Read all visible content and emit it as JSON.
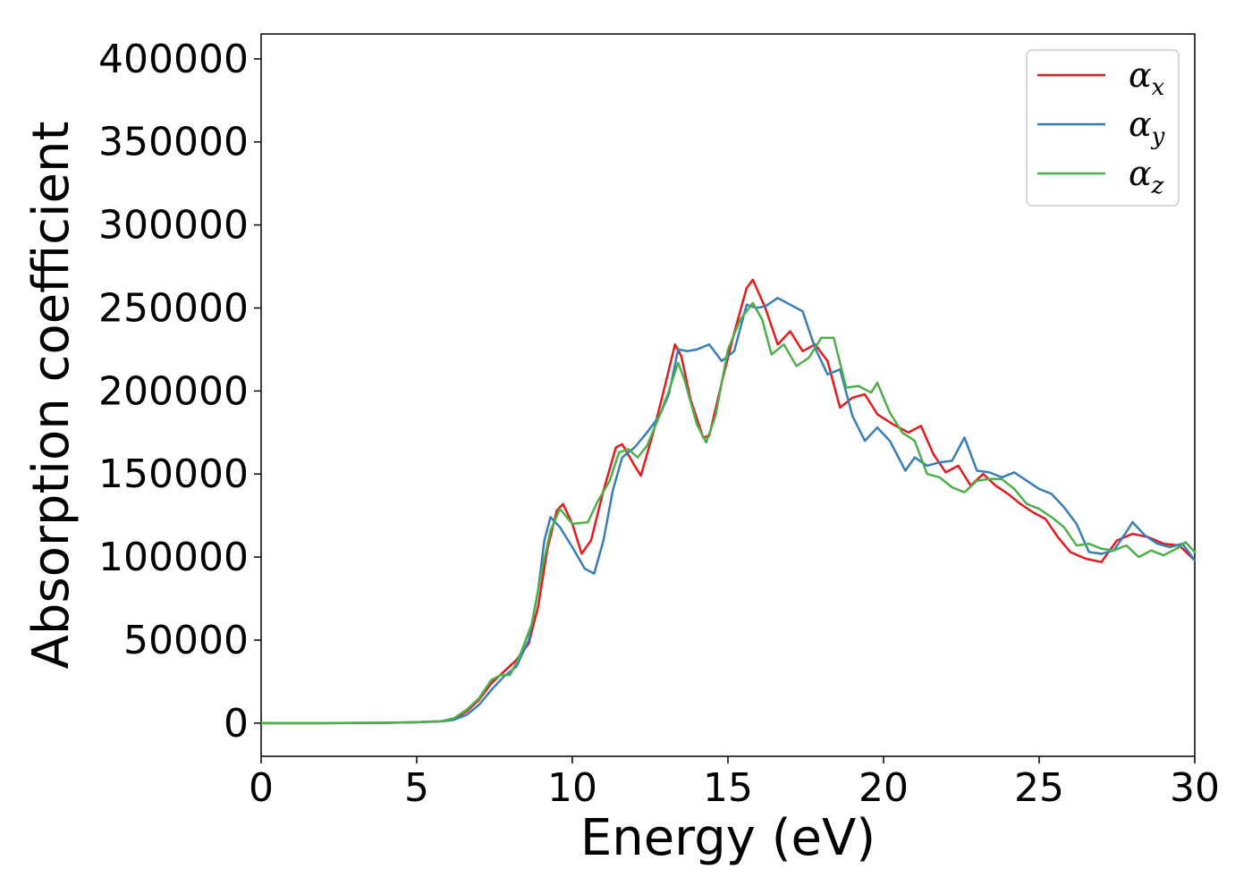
{
  "chart_data": {
    "type": "line",
    "title": "",
    "xlabel": "Energy (eV)",
    "ylabel": "Absorption coefficient",
    "xlim": [
      0,
      30
    ],
    "ylim": [
      -20000,
      415000
    ],
    "xticks": [
      0,
      5,
      10,
      15,
      20,
      25,
      30
    ],
    "xtick_labels": [
      "0",
      "5",
      "10",
      "15",
      "20",
      "25",
      "30"
    ],
    "yticks": [
      0,
      50000,
      100000,
      150000,
      200000,
      250000,
      300000,
      350000,
      400000
    ],
    "ytick_labels": [
      "0",
      "50000",
      "100000",
      "150000",
      "200000",
      "250000",
      "300000",
      "350000",
      "400000"
    ],
    "grid": false,
    "legend_position": "top-right",
    "series": [
      {
        "name": "α",
        "subscript": "x",
        "color": "#e41a1c",
        "points": [
          [
            0,
            0
          ],
          [
            2,
            0
          ],
          [
            4,
            200
          ],
          [
            5,
            500
          ],
          [
            5.8,
            1200
          ],
          [
            6.2,
            2500
          ],
          [
            6.6,
            7000
          ],
          [
            7,
            14000
          ],
          [
            7.4,
            24000
          ],
          [
            7.8,
            31000
          ],
          [
            8.2,
            38000
          ],
          [
            8.6,
            48000
          ],
          [
            8.9,
            70000
          ],
          [
            9.2,
            105000
          ],
          [
            9.5,
            128000
          ],
          [
            9.7,
            132000
          ],
          [
            10,
            120000
          ],
          [
            10.3,
            102000
          ],
          [
            10.6,
            110000
          ],
          [
            11,
            140000
          ],
          [
            11.4,
            166000
          ],
          [
            11.6,
            168000
          ],
          [
            12,
            155000
          ],
          [
            12.2,
            149000
          ],
          [
            12.6,
            175000
          ],
          [
            13,
            205000
          ],
          [
            13.3,
            228000
          ],
          [
            13.5,
            221000
          ],
          [
            13.8,
            195000
          ],
          [
            14.2,
            172000
          ],
          [
            14.4,
            173000
          ],
          [
            14.8,
            205000
          ],
          [
            15.2,
            235000
          ],
          [
            15.6,
            262000
          ],
          [
            15.8,
            267000
          ],
          [
            16.2,
            250000
          ],
          [
            16.6,
            228000
          ],
          [
            17,
            236000
          ],
          [
            17.4,
            224000
          ],
          [
            17.8,
            228000
          ],
          [
            18.2,
            218000
          ],
          [
            18.6,
            190000
          ],
          [
            19,
            196000
          ],
          [
            19.4,
            198000
          ],
          [
            19.8,
            186000
          ],
          [
            20.3,
            180000
          ],
          [
            20.8,
            175000
          ],
          [
            21.2,
            179000
          ],
          [
            21.6,
            162000
          ],
          [
            22,
            151000
          ],
          [
            22.4,
            155000
          ],
          [
            22.8,
            143000
          ],
          [
            23.2,
            150000
          ],
          [
            23.6,
            143000
          ],
          [
            24,
            138000
          ],
          [
            24.4,
            132000
          ],
          [
            24.8,
            127000
          ],
          [
            25.2,
            123000
          ],
          [
            25.6,
            112000
          ],
          [
            26,
            103000
          ],
          [
            26.5,
            99000
          ],
          [
            27,
            97000
          ],
          [
            27.5,
            110000
          ],
          [
            28,
            114000
          ],
          [
            28.5,
            112000
          ],
          [
            29,
            108000
          ],
          [
            29.5,
            107000
          ],
          [
            30,
            98000
          ]
        ]
      },
      {
        "name": "α",
        "subscript": "y",
        "color": "#377eb8",
        "points": [
          [
            0,
            0
          ],
          [
            2,
            0
          ],
          [
            4,
            200
          ],
          [
            5,
            500
          ],
          [
            5.8,
            1000
          ],
          [
            6.2,
            2000
          ],
          [
            6.6,
            5000
          ],
          [
            7,
            11000
          ],
          [
            7.4,
            20000
          ],
          [
            7.8,
            28000
          ],
          [
            8.2,
            34000
          ],
          [
            8.6,
            50000
          ],
          [
            8.9,
            80000
          ],
          [
            9.1,
            110000
          ],
          [
            9.3,
            124000
          ],
          [
            9.6,
            118000
          ],
          [
            10,
            106000
          ],
          [
            10.4,
            93000
          ],
          [
            10.7,
            90000
          ],
          [
            11,
            110000
          ],
          [
            11.3,
            140000
          ],
          [
            11.6,
            160000
          ],
          [
            12,
            166000
          ],
          [
            12.4,
            175000
          ],
          [
            12.8,
            185000
          ],
          [
            13.1,
            198000
          ],
          [
            13.4,
            225000
          ],
          [
            13.7,
            224000
          ],
          [
            14,
            225000
          ],
          [
            14.4,
            228000
          ],
          [
            14.8,
            218000
          ],
          [
            15.2,
            224000
          ],
          [
            15.6,
            252000
          ],
          [
            15.9,
            250000
          ],
          [
            16.2,
            251000
          ],
          [
            16.6,
            256000
          ],
          [
            17,
            252000
          ],
          [
            17.4,
            248000
          ],
          [
            17.8,
            226000
          ],
          [
            18.2,
            210000
          ],
          [
            18.6,
            213000
          ],
          [
            19,
            185000
          ],
          [
            19.4,
            170000
          ],
          [
            19.8,
            178000
          ],
          [
            20.2,
            170000
          ],
          [
            20.7,
            152000
          ],
          [
            21,
            160000
          ],
          [
            21.4,
            155000
          ],
          [
            21.8,
            157000
          ],
          [
            22.2,
            158000
          ],
          [
            22.6,
            172000
          ],
          [
            23,
            152000
          ],
          [
            23.4,
            151000
          ],
          [
            23.8,
            148000
          ],
          [
            24.2,
            151000
          ],
          [
            24.6,
            146000
          ],
          [
            25,
            141000
          ],
          [
            25.4,
            138000
          ],
          [
            25.8,
            130000
          ],
          [
            26.2,
            120000
          ],
          [
            26.6,
            103000
          ],
          [
            27,
            102000
          ],
          [
            27.4,
            104000
          ],
          [
            27.8,
            115000
          ],
          [
            28,
            121000
          ],
          [
            28.4,
            113000
          ],
          [
            28.8,
            108000
          ],
          [
            29.2,
            106000
          ],
          [
            29.6,
            108000
          ],
          [
            30,
            98000
          ]
        ]
      },
      {
        "name": "α",
        "subscript": "z",
        "color": "#4daf4a",
        "points": [
          [
            0,
            0
          ],
          [
            2,
            0
          ],
          [
            4,
            200
          ],
          [
            5,
            500
          ],
          [
            5.8,
            1200
          ],
          [
            6.2,
            3000
          ],
          [
            6.6,
            8000
          ],
          [
            7,
            15000
          ],
          [
            7.4,
            26000
          ],
          [
            7.7,
            29000
          ],
          [
            8,
            29000
          ],
          [
            8.3,
            40000
          ],
          [
            8.7,
            60000
          ],
          [
            9,
            90000
          ],
          [
            9.3,
            116000
          ],
          [
            9.6,
            129000
          ],
          [
            10,
            120000
          ],
          [
            10.5,
            121000
          ],
          [
            10.8,
            133000
          ],
          [
            11.2,
            146000
          ],
          [
            11.5,
            163000
          ],
          [
            11.8,
            165000
          ],
          [
            12.1,
            160000
          ],
          [
            12.4,
            167000
          ],
          [
            12.8,
            185000
          ],
          [
            13.1,
            200000
          ],
          [
            13.4,
            217000
          ],
          [
            13.6,
            207000
          ],
          [
            14,
            180000
          ],
          [
            14.3,
            169000
          ],
          [
            14.6,
            185000
          ],
          [
            15,
            225000
          ],
          [
            15.4,
            243000
          ],
          [
            15.8,
            253000
          ],
          [
            16.1,
            243000
          ],
          [
            16.4,
            222000
          ],
          [
            16.8,
            228000
          ],
          [
            17.2,
            215000
          ],
          [
            17.6,
            220000
          ],
          [
            18,
            232000
          ],
          [
            18.4,
            232000
          ],
          [
            18.8,
            202000
          ],
          [
            19.2,
            203000
          ],
          [
            19.6,
            199000
          ],
          [
            19.8,
            205000
          ],
          [
            20.2,
            187000
          ],
          [
            20.6,
            175000
          ],
          [
            21,
            170000
          ],
          [
            21.4,
            150000
          ],
          [
            21.8,
            148000
          ],
          [
            22.2,
            142000
          ],
          [
            22.6,
            139000
          ],
          [
            23,
            146000
          ],
          [
            23.4,
            147000
          ],
          [
            23.8,
            147000
          ],
          [
            24.2,
            141000
          ],
          [
            24.6,
            132000
          ],
          [
            25,
            129000
          ],
          [
            25.4,
            124000
          ],
          [
            25.8,
            118000
          ],
          [
            26.2,
            107000
          ],
          [
            26.6,
            108000
          ],
          [
            27,
            105000
          ],
          [
            27.4,
            104000
          ],
          [
            27.8,
            107000
          ],
          [
            28.2,
            100000
          ],
          [
            28.6,
            104000
          ],
          [
            29,
            101000
          ],
          [
            29.5,
            106000
          ],
          [
            29.7,
            109000
          ],
          [
            30,
            103000
          ]
        ]
      }
    ]
  }
}
